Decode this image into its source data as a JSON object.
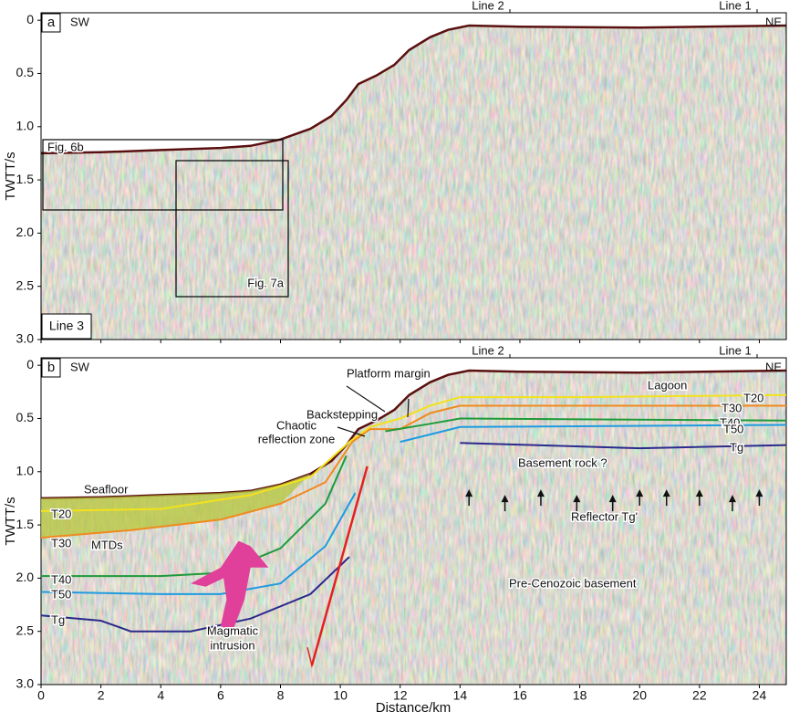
{
  "axes": {
    "x_label": "Distance/km",
    "y_label": "TWTT/s",
    "xlim": [
      0,
      24.9
    ],
    "xticks": [
      0,
      2,
      4,
      6,
      8,
      10,
      12,
      14,
      16,
      18,
      20,
      22,
      24
    ],
    "ylim": [
      -0.07,
      3
    ],
    "yticks": [
      0,
      0.5,
      {
        "value": 1,
        "label": "1.0"
      },
      1.5,
      {
        "value": 2,
        "label": "2.0"
      },
      2.5,
      {
        "value": 3,
        "label": "3.0"
      }
    ]
  },
  "panels": [
    {
      "letter": "a",
      "sw": "SW",
      "ne": "NE",
      "line1": "Line 1",
      "line2": "Line 2",
      "line_name": "Line 3",
      "boxes": [
        "Fig. 6b",
        "Fig. 7a"
      ]
    },
    {
      "letter": "b",
      "sw": "SW",
      "ne": "NE",
      "line1": "Line 1",
      "line2": "Line 2",
      "labels": {
        "seafloor": "Seafloor",
        "mtds": "MTDs",
        "platform_margin": "Platform margin",
        "backstepping": "Backstepping",
        "chaotic": [
          "Chaotic",
          "reflection zone"
        ],
        "lagoon": "Lagoon",
        "basement_rock": "Basement rock ?",
        "reflector": "Reflector Tg'",
        "basement": "Pre-Cenozoic basement",
        "magmatic": [
          "Magmatic",
          "intrusion"
        ]
      },
      "horizons": [
        "T20",
        "T30",
        "T40",
        "T50",
        "Tg"
      ]
    }
  ]
}
